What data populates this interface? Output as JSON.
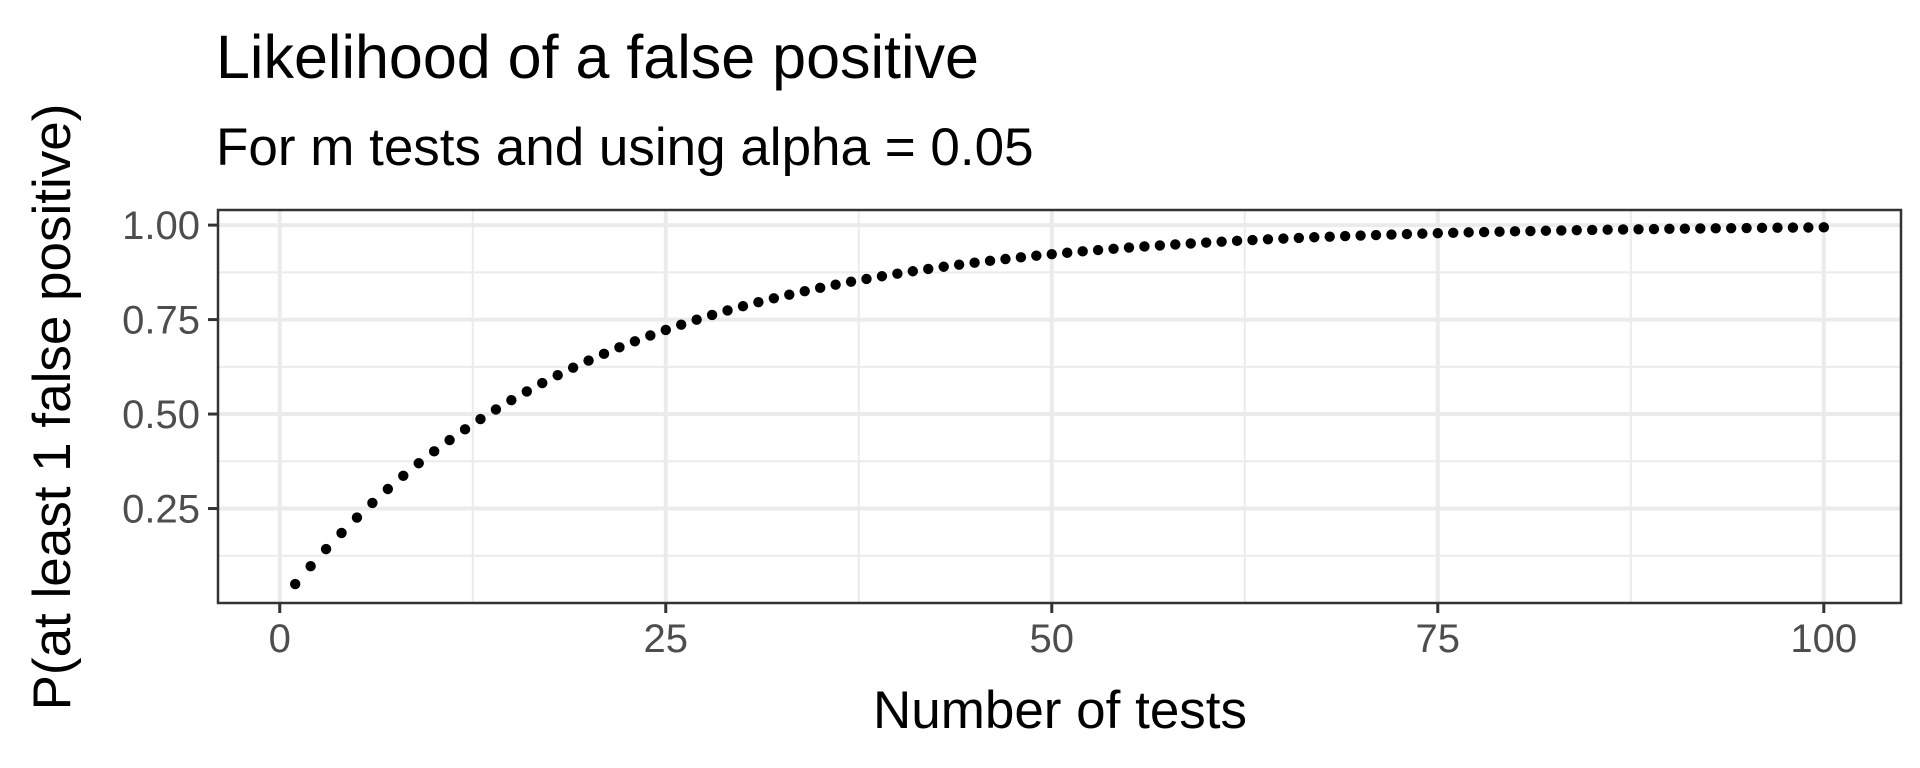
{
  "chart_data": {
    "type": "scatter",
    "title": "Likelihood of a false positive",
    "subtitle": "For m tests and using alpha = 0.05",
    "xlabel": "Number of tests",
    "ylabel": "P(at least 1 false positive)",
    "xlim": [
      -4,
      105
    ],
    "ylim": [
      0.0,
      1.04
    ],
    "x_ticks": [
      0,
      25,
      50,
      75,
      100
    ],
    "x_tick_labels": [
      "0",
      "25",
      "50",
      "75",
      "100"
    ],
    "y_ticks": [
      0.25,
      0.5,
      0.75,
      1.0
    ],
    "y_tick_labels": [
      "0.25",
      "0.50",
      "0.75",
      "1.00"
    ],
    "x_minor_ticks": [
      12.5,
      37.5,
      62.5,
      87.5
    ],
    "y_minor_ticks": [
      0.125,
      0.375,
      0.625,
      0.875
    ],
    "grid": true,
    "legend": "none",
    "point_color": "#000000",
    "series": [
      {
        "x": [
          1,
          2,
          3,
          4,
          5,
          6,
          7,
          8,
          9,
          10,
          11,
          12,
          13,
          14,
          15,
          16,
          17,
          18,
          19,
          20,
          21,
          22,
          23,
          24,
          25,
          26,
          27,
          28,
          29,
          30,
          31,
          32,
          33,
          34,
          35,
          36,
          37,
          38,
          39,
          40,
          41,
          42,
          43,
          44,
          45,
          46,
          47,
          48,
          49,
          50,
          51,
          52,
          53,
          54,
          55,
          56,
          57,
          58,
          59,
          60,
          61,
          62,
          63,
          64,
          65,
          66,
          67,
          68,
          69,
          70,
          71,
          72,
          73,
          74,
          75,
          76,
          77,
          78,
          79,
          80,
          81,
          82,
          83,
          84,
          85,
          86,
          87,
          88,
          89,
          90,
          91,
          92,
          93,
          94,
          95,
          96,
          97,
          98,
          99,
          100
        ],
        "y": [
          0.05,
          0.0975,
          0.1426,
          0.1855,
          0.2262,
          0.2649,
          0.3017,
          0.3366,
          0.3698,
          0.4013,
          0.4312,
          0.4596,
          0.4867,
          0.5123,
          0.5367,
          0.5599,
          0.5819,
          0.6028,
          0.6226,
          0.6415,
          0.6594,
          0.6765,
          0.6926,
          0.708,
          0.7226,
          0.7365,
          0.7497,
          0.7622,
          0.7741,
          0.7854,
          0.7961,
          0.8063,
          0.816,
          0.8252,
          0.834,
          0.8423,
          0.8502,
          0.8576,
          0.8647,
          0.8715,
          0.8779,
          0.884,
          0.8898,
          0.8953,
          0.9006,
          0.9055,
          0.9103,
          0.9147,
          0.919,
          0.9231,
          0.9269,
          0.9306,
          0.9341,
          0.9373,
          0.9405,
          0.9435,
          0.9463,
          0.949,
          0.9515,
          0.9539,
          0.9562,
          0.9584,
          0.9605,
          0.9625,
          0.9644,
          0.9662,
          0.9679,
          0.9695,
          0.971,
          0.9724,
          0.9738,
          0.9751,
          0.9764,
          0.9775,
          0.9787,
          0.9797,
          0.9808,
          0.9817,
          0.9826,
          0.9835,
          0.9843,
          0.9851,
          0.9858,
          0.9866,
          0.9872,
          0.9879,
          0.9885,
          0.989,
          0.9896,
          0.9901,
          0.9906,
          0.9911,
          0.9915,
          0.9919,
          0.9923,
          0.9927,
          0.9931,
          0.9934,
          0.9937,
          0.9941
        ]
      }
    ]
  }
}
